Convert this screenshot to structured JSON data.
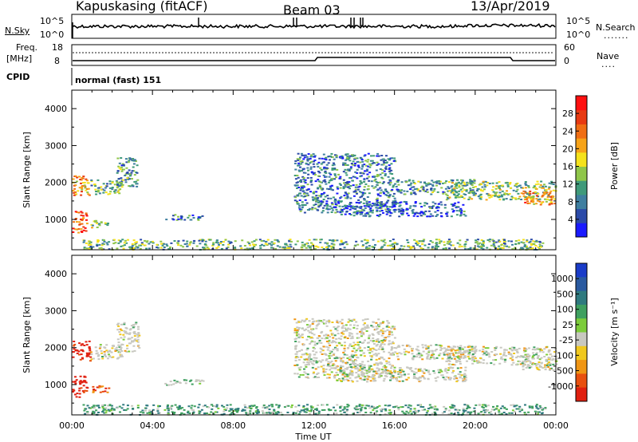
{
  "header": {
    "station": "Kapuskasing (fitACF)",
    "beam": "Beam 03",
    "date": "13/Apr/2019"
  },
  "small_panels": {
    "nsky_label": "N.Sky",
    "nsky_ticks": [
      "10^5",
      "10^0"
    ],
    "nsearch_label": "N.Search",
    "nsearch_ticks": [
      "10^5",
      "10^0"
    ],
    "freq_label_1": "Freq.",
    "freq_label_2": "[MHz]",
    "freq_ticks": [
      "18",
      "8"
    ],
    "nave_label": "Nave",
    "nave_ticks": [
      "60",
      "0"
    ],
    "cpid_label": "CPID",
    "cpid_value": "normal (fast) 151"
  },
  "colors": {
    "power_scale": [
      "#1a1aff",
      "#2b4aa8",
      "#3f7fa0",
      "#3f9a7a",
      "#8fc64a",
      "#f5e21b",
      "#f7a318",
      "#f06e14",
      "#e83a12",
      "#ff1010"
    ],
    "velocity_scale": [
      "#1a3cc8",
      "#2a5aa0",
      "#2f7a7f",
      "#3fa060",
      "#7ccc3a",
      "#c8c8c0",
      "#f0c81e",
      "#f09614",
      "#e8500f",
      "#e02010"
    ]
  },
  "chart_data": [
    {
      "type": "heatmap",
      "name": "Power",
      "xlabel": "",
      "ylabel": "Slant Range [km]",
      "x_ticks": [
        "00:00",
        "04:00",
        "08:00",
        "12:00",
        "16:00",
        "20:00",
        "00:00"
      ],
      "y_ticks": [
        1000,
        2000,
        3000,
        4000
      ],
      "ylim": [
        180,
        4500
      ],
      "colorbar_label": "Power [dB]",
      "colorbar_ticks": [
        "4",
        "8",
        "12",
        "16",
        "20",
        "24",
        "28"
      ],
      "colorbar_range": [
        0,
        32
      ]
    },
    {
      "type": "heatmap",
      "name": "Velocity",
      "xlabel": "Time UT",
      "ylabel": "Slant Range [km]",
      "x_ticks": [
        "00:00",
        "04:00",
        "08:00",
        "12:00",
        "16:00",
        "20:00",
        "00:00"
      ],
      "y_ticks": [
        1000,
        2000,
        3000,
        4000
      ],
      "ylim": [
        180,
        4500
      ],
      "colorbar_label": "Velocity [m s⁻¹]",
      "colorbar_ticks": [
        "1000",
        "500",
        "100",
        "25",
        "-25",
        "-100",
        "-500",
        "-1000"
      ]
    }
  ],
  "echo_regions": [
    {
      "t0": 0.0,
      "t1": 0.9,
      "r0": 1650,
      "r1": 2200,
      "p": 22,
      "v": -1
    },
    {
      "t0": 0.9,
      "t1": 2.5,
      "r0": 1700,
      "r1": 2100,
      "p": 12,
      "v": 0
    },
    {
      "t0": 2.2,
      "t1": 3.3,
      "r0": 1900,
      "r1": 2700,
      "p": 10,
      "v": 0
    },
    {
      "t0": 0.0,
      "t1": 0.7,
      "r0": 650,
      "r1": 1250,
      "p": 26,
      "v": -1
    },
    {
      "t0": 0.7,
      "t1": 1.8,
      "r0": 800,
      "r1": 1000,
      "p": 14,
      "v": -0.7
    },
    {
      "t0": 4.5,
      "t1": 6.5,
      "r0": 1000,
      "r1": 1150,
      "p": 8,
      "v": 0.2
    },
    {
      "t0": 0.5,
      "t1": 23.5,
      "r0": 200,
      "r1": 480,
      "p": 12,
      "v": 0.4
    },
    {
      "t0": 11.0,
      "t1": 16.0,
      "r0": 1200,
      "r1": 2800,
      "p": 8,
      "v": 0
    },
    {
      "t0": 13.0,
      "t1": 19.5,
      "r0": 1100,
      "r1": 1500,
      "p": 6,
      "v": 0
    },
    {
      "t0": 16.0,
      "t1": 20.0,
      "r0": 1700,
      "r1": 2100,
      "p": 10,
      "v": 0
    },
    {
      "t0": 18.5,
      "t1": 24.0,
      "r0": 1550,
      "r1": 2050,
      "p": 14,
      "v": 0
    },
    {
      "t0": 22.3,
      "t1": 24.0,
      "r0": 1400,
      "r1": 1800,
      "p": 22,
      "v": 0
    }
  ]
}
